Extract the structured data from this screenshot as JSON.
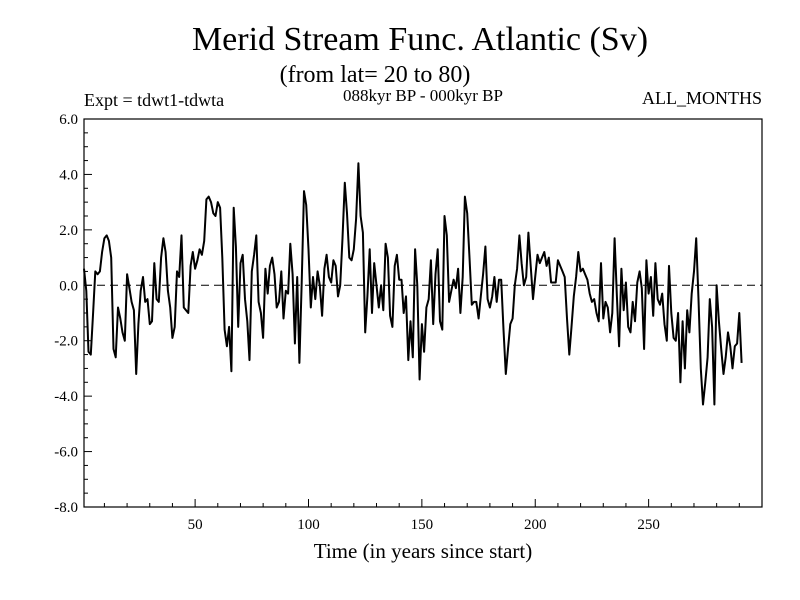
{
  "chart_data": {
    "type": "line",
    "title": "Merid Stream Func. Atlantic (Sv)",
    "subtitle": "(from lat= 20 to 80)",
    "experiment_label": "Expt = tdwt1-tdwta",
    "time_range_label": "088kyr BP - 000kyr BP",
    "months_label": "ALL_MONTHS",
    "xlabel": "Time (in years since start)",
    "ylabel": "",
    "xlim": [
      1,
      300
    ],
    "ylim": [
      -8.0,
      6.0
    ],
    "x_ticks": [
      50,
      100,
      150,
      200,
      250
    ],
    "x_tick_labels": [
      "50",
      "100",
      "150",
      "200",
      "250"
    ],
    "y_ticks": [
      -8,
      -6,
      -4,
      -2,
      0,
      2,
      4,
      6
    ],
    "y_tick_labels": [
      "-8.0",
      "-6.0",
      "-4.0",
      "-2.0",
      "0.0",
      "2.0",
      "4.0",
      "6.0"
    ],
    "reference_line": {
      "y": 0.0,
      "style": "dashed"
    },
    "series": [
      {
        "name": "Merid Stream Func. Atlantic",
        "x_start": 1,
        "x_step": 1,
        "values": [
          0.6,
          -0.2,
          -2.4,
          -2.5,
          -1.0,
          0.5,
          0.4,
          0.5,
          1.2,
          1.7,
          1.8,
          1.6,
          1.0,
          -2.3,
          -2.6,
          -0.8,
          -1.2,
          -1.7,
          -2.0,
          0.4,
          -0.1,
          -0.6,
          -0.9,
          -3.2,
          -1.4,
          -0.2,
          0.3,
          -0.6,
          -0.5,
          -1.4,
          -1.3,
          0.8,
          -0.5,
          -0.6,
          1.0,
          1.7,
          1.2,
          -0.2,
          -0.8,
          -1.9,
          -1.5,
          0.5,
          0.3,
          1.8,
          -0.8,
          -0.9,
          -1.0,
          0.7,
          1.2,
          0.6,
          0.9,
          1.3,
          1.1,
          1.6,
          3.1,
          3.2,
          3.0,
          2.6,
          2.5,
          3.0,
          2.8,
          1.0,
          -1.6,
          -2.2,
          -1.5,
          -3.1,
          2.8,
          1.4,
          -1.5,
          0.8,
          1.1,
          -0.5,
          -1.3,
          -2.7,
          0.5,
          1.1,
          1.8,
          -0.6,
          -1.0,
          -1.9,
          0.6,
          -0.3,
          0.7,
          1.0,
          0.4,
          -0.8,
          -0.6,
          0.5,
          -1.2,
          -0.2,
          -0.3,
          1.5,
          0.4,
          -2.1,
          0.3,
          -2.8,
          0.1,
          3.4,
          2.9,
          1.3,
          -0.8,
          0.3,
          -0.5,
          0.5,
          0.0,
          -1.1,
          0.6,
          1.1,
          0.3,
          0.1,
          0.9,
          0.7,
          -0.4,
          0.0,
          1.7,
          3.7,
          2.6,
          1.0,
          0.9,
          1.3,
          2.4,
          4.4,
          2.5,
          1.9,
          -1.7,
          -0.4,
          1.3,
          -1.0,
          0.8,
          0.0,
          -0.8,
          0.0,
          -0.9,
          1.5,
          1.0,
          -1.1,
          -1.5,
          0.7,
          1.1,
          0.2,
          0.2,
          -1.0,
          -0.4,
          -2.7,
          -1.3,
          -2.6,
          1.3,
          0.0,
          -3.4,
          -1.4,
          -2.4,
          -0.8,
          -0.5,
          0.9,
          -1.4,
          0.4,
          1.3,
          -1.3,
          -1.6,
          2.5,
          1.8,
          -0.6,
          -0.2,
          0.2,
          -0.1,
          0.6,
          -1.0,
          0.3,
          3.2,
          2.6,
          1.0,
          -0.7,
          -0.6,
          -0.6,
          -1.2,
          -0.4,
          0.4,
          1.4,
          -0.5,
          -0.8,
          -0.4,
          0.3,
          -0.6,
          0.2,
          0.2,
          -1.6,
          -3.2,
          -2.3,
          -1.4,
          -1.2,
          0.0,
          0.6,
          1.8,
          0.8,
          0.0,
          0.3,
          1.9,
          0.7,
          -0.5,
          0.3,
          1.1,
          0.8,
          1.0,
          1.2,
          0.7,
          1.0,
          0.1,
          0.1,
          0.1,
          0.9,
          0.7,
          0.5,
          0.3,
          -1.2,
          -2.5,
          -1.5,
          -0.4,
          0.3,
          1.2,
          0.5,
          0.6,
          0.4,
          0.2,
          -0.3,
          -0.6,
          -0.5,
          -1.0,
          -1.3,
          0.8,
          -1.2,
          -0.6,
          -0.8,
          -1.7,
          -1.0,
          1.7,
          -0.4,
          -2.2,
          0.6,
          -0.9,
          0.1,
          -1.5,
          -1.7,
          -0.6,
          -1.3,
          0.1,
          0.5,
          -0.1,
          -2.3,
          0.9,
          -0.3,
          0.3,
          -1.1,
          0.8,
          -0.5,
          -0.7,
          -0.3,
          -1.4,
          -2.0,
          0.7,
          -1.0,
          -1.9,
          -2.0,
          -1.0,
          -3.5,
          -1.3,
          -3.0,
          -0.9,
          -1.7,
          -0.3,
          0.5,
          1.7,
          -0.5,
          -3.0,
          -4.3,
          -3.5,
          -2.6,
          -0.5,
          -1.5,
          -4.3,
          0.0,
          -1.3,
          -2.3,
          -3.2,
          -2.6,
          -1.7,
          -2.2,
          -3.0,
          -2.2,
          -2.1,
          -1.0,
          -2.8
        ]
      }
    ]
  }
}
